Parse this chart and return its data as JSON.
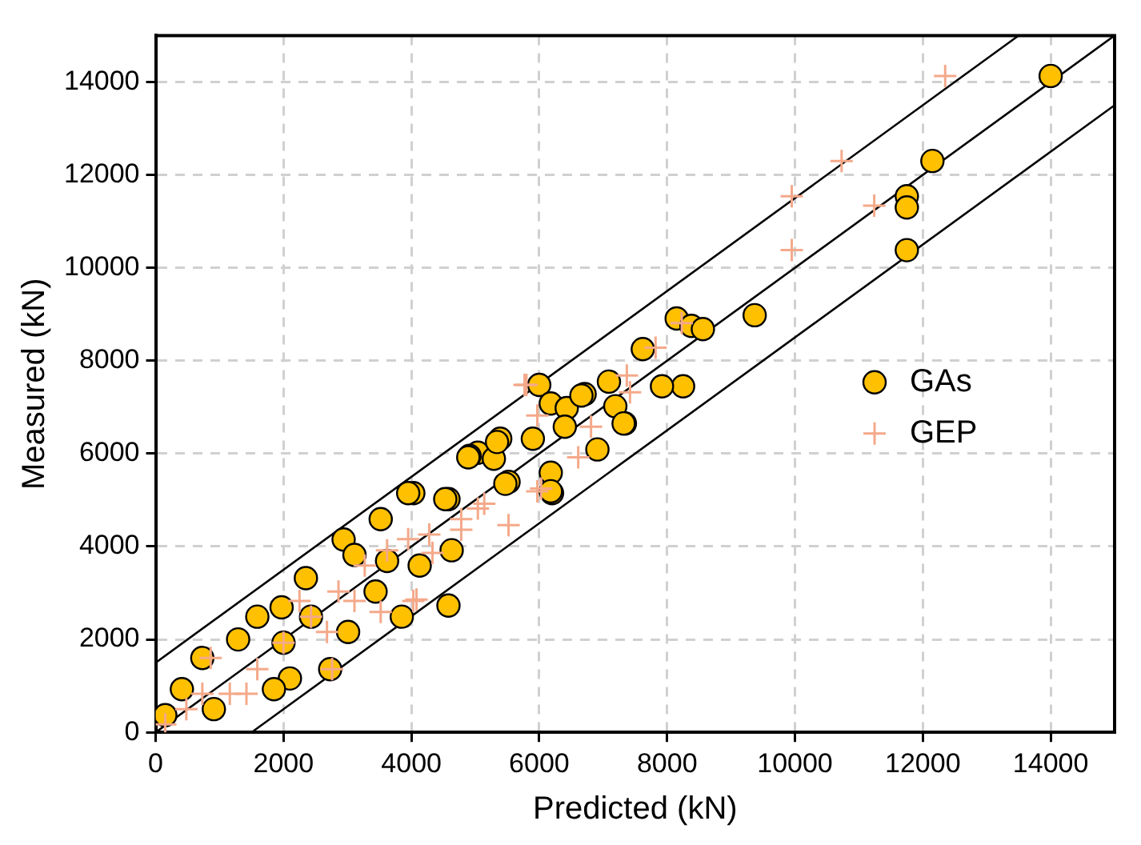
{
  "chart_data": {
    "type": "scatter",
    "xlabel": "Predicted (kN)",
    "ylabel": "Measured (kN)",
    "xlim": [
      0,
      15000
    ],
    "ylim": [
      0,
      15000
    ],
    "xticks": [
      0,
      2000,
      4000,
      6000,
      8000,
      10000,
      12000,
      14000
    ],
    "yticks": [
      0,
      2000,
      4000,
      6000,
      8000,
      10000,
      12000,
      14000
    ],
    "grid": true,
    "legend": "right",
    "series": [
      {
        "name": "GAs",
        "type": "scatter",
        "marker": "circle",
        "color": "#ffc000",
        "x": [
          14000,
          12150,
          11750,
          11750,
          11750,
          9370,
          8250,
          7920,
          8150,
          8380,
          8560,
          7620,
          6910,
          6000,
          6180,
          5040,
          7340,
          7190,
          7090,
          6710,
          6430,
          6400,
          6180,
          6200,
          5390,
          4910,
          5290,
          5900,
          5520,
          4580,
          4030,
          4580,
          3850,
          2730,
          2100,
          2350,
          2940,
          3520,
          3950,
          5340,
          4890,
          6660,
          7320,
          6180,
          4530,
          5470,
          1290,
          1590,
          1970,
          730,
          410,
          150,
          910,
          1850,
          3010,
          3440,
          4630,
          4130,
          3620,
          2430,
          3110,
          2000
        ],
        "values": [
          14130,
          12300,
          11540,
          11300,
          10380,
          8980,
          7450,
          7450,
          8910,
          8750,
          8680,
          8250,
          6090,
          7480,
          7080,
          6020,
          6650,
          7020,
          7550,
          7280,
          6980,
          6580,
          5590,
          5150,
          6320,
          5950,
          5890,
          6320,
          5390,
          5020,
          5150,
          2730,
          2490,
          1360,
          1160,
          3320,
          4150,
          4590,
          5150,
          6250,
          5920,
          7250,
          6650,
          5190,
          5020,
          5350,
          2000,
          2490,
          2690,
          1600,
          930,
          370,
          500,
          930,
          2160,
          3030,
          3920,
          3590,
          3690,
          2490,
          3820,
          1930
        ]
      },
      {
        "name": "GEP",
        "type": "scatter",
        "marker": "cross",
        "color": "#f4a98a",
        "x": [
          12350,
          10730,
          9950,
          9950,
          11240,
          8230,
          7420,
          5770,
          5970,
          5520,
          5970,
          6610,
          7820,
          7370,
          4080,
          4780,
          5040,
          4330,
          4030,
          3520,
          2760,
          860,
          1420,
          5800,
          6810,
          6030,
          1160,
          1590,
          2000,
          2430,
          2860,
          3270,
          3620,
          3950,
          4280,
          480,
          150,
          730,
          4780,
          5140,
          2250,
          2680,
          3110
        ],
        "values": [
          14130,
          12300,
          11540,
          10380,
          11340,
          8810,
          7320,
          7480,
          6820,
          4460,
          5190,
          5920,
          8280,
          7680,
          2860,
          4360,
          4820,
          3860,
          2830,
          2590,
          1360,
          1600,
          830,
          7480,
          6580,
          5250,
          830,
          1360,
          1930,
          2490,
          3030,
          3590,
          3920,
          4160,
          4260,
          500,
          170,
          830,
          4590,
          4920,
          2830,
          2160,
          2830
        ]
      },
      {
        "type": "line",
        "marker": "none",
        "line_style": "solid",
        "color": "#000000",
        "x": [
          0,
          13500
        ],
        "values": [
          1500,
          15000
        ]
      },
      {
        "type": "line",
        "marker": "none",
        "line_style": "solid",
        "color": "#000000",
        "x": [
          0,
          15000
        ],
        "values": [
          0,
          15000
        ]
      },
      {
        "type": "line",
        "marker": "none",
        "line_style": "solid",
        "color": "#000000",
        "x": [
          1500,
          15000
        ],
        "values": [
          0,
          13500
        ]
      }
    ]
  }
}
